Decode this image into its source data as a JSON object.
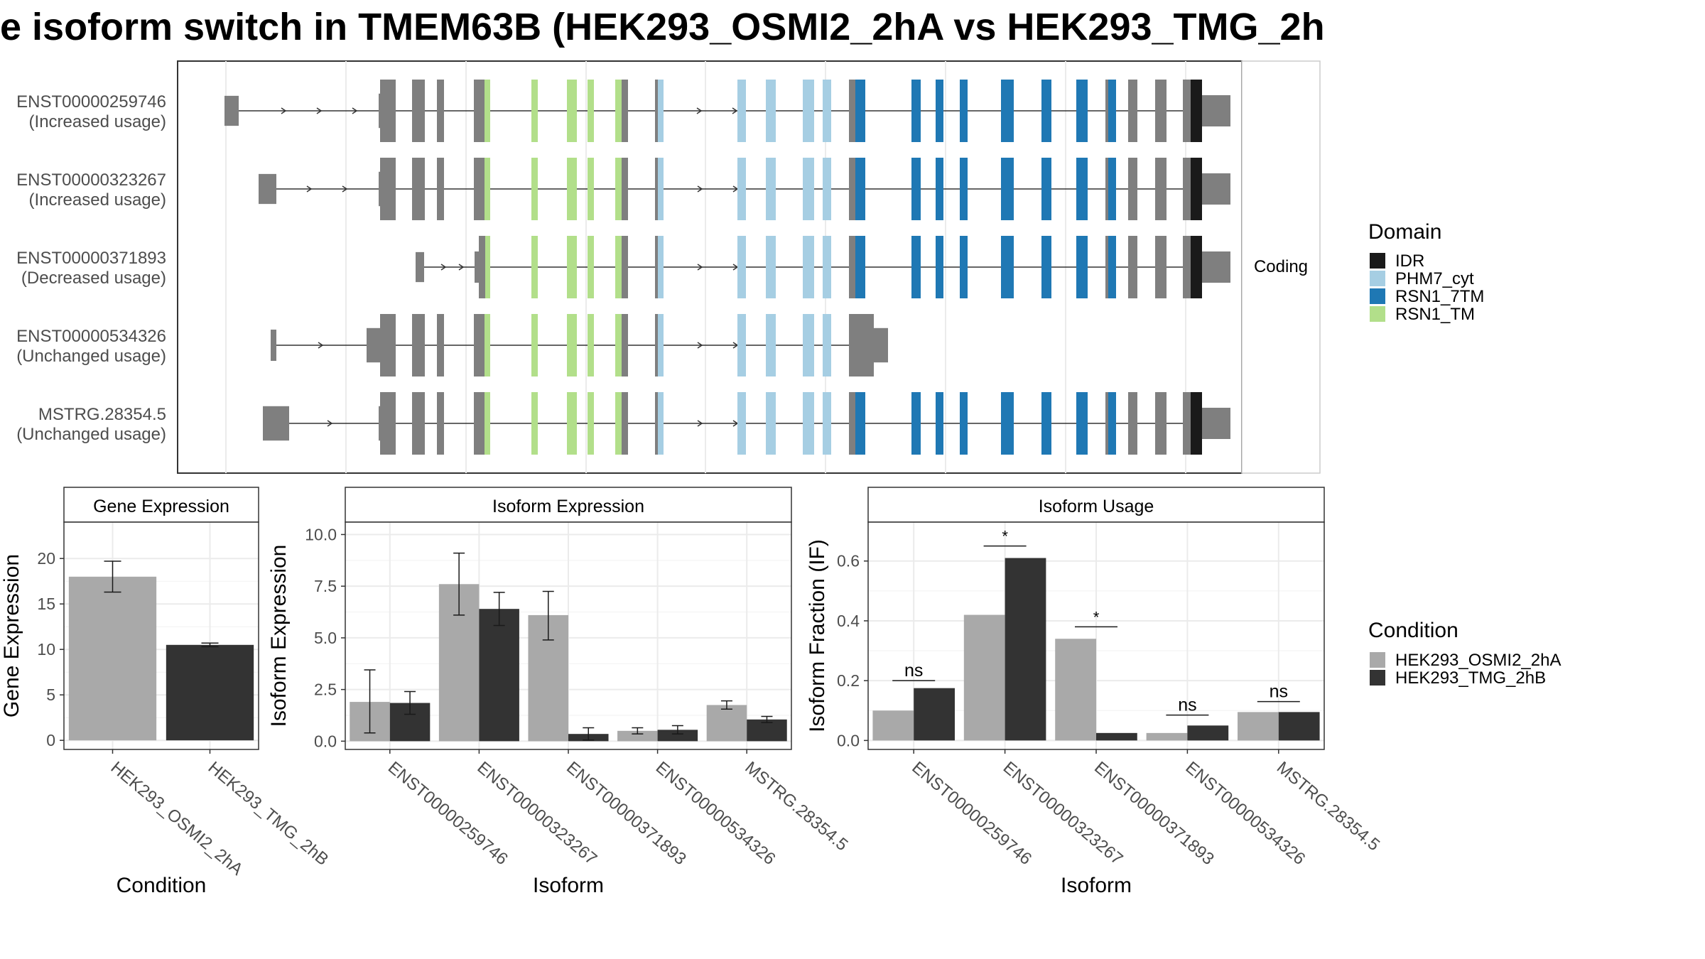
{
  "title": "e isoform switch in TMEM63B (HEK293_OSMI2_2hA vs HEK293_TMG_2h",
  "colors": {
    "exon": "#7f7f7f",
    "IDR": "#1a1a1a",
    "PHM7_cyt": "#a6cee3",
    "RSN1_7TM": "#1f78b4",
    "RSN1_TM": "#b2df8a",
    "cond_a": "#a9a9a9",
    "cond_b": "#333333",
    "panel_border": "#333333",
    "strip_bg": "#ffffff",
    "grid": "#ebebeb"
  },
  "legend_domain": {
    "title": "Domain",
    "items": [
      {
        "name": "IDR",
        "color": "#1a1a1a"
      },
      {
        "name": "PHM7_cyt",
        "color": "#a6cee3"
      },
      {
        "name": "RSN1_7TM",
        "color": "#1f78b4"
      },
      {
        "name": "RSN1_TM",
        "color": "#b2df8a"
      }
    ]
  },
  "legend_condition": {
    "title": "Condition",
    "items": [
      {
        "name": "HEK293_OSMI2_2hA",
        "color": "#a9a9a9"
      },
      {
        "name": "HEK293_TMG_2hB",
        "color": "#333333"
      }
    ]
  },
  "structure": {
    "facet_label": "Coding",
    "rows": [
      {
        "id": "ENST00000259746",
        "note": "(Increased usage)"
      },
      {
        "id": "ENST00000323267",
        "note": "(Increased usage)"
      },
      {
        "id": "ENST00000371893",
        "note": "(Decreased usage)"
      },
      {
        "id": "ENST00000534326",
        "note": "(Unchanged usage)"
      },
      {
        "id": "MSTRG.28354.5",
        "note": "(Unchanged usage)"
      }
    ]
  },
  "chart_data": [
    {
      "type": "bar",
      "title": "Gene Expression",
      "xlabel": "Condition",
      "ylabel": "Gene Expression",
      "categories": [
        "HEK293_OSMI2_2hA",
        "HEK293_TMG_2hB"
      ],
      "values": [
        18.0,
        10.5
      ],
      "errors": [
        [
          16.3,
          19.7
        ],
        [
          10.3,
          10.7
        ]
      ],
      "ylim": [
        -1,
        24
      ],
      "yticks": [
        0,
        5,
        10,
        15,
        20
      ]
    },
    {
      "type": "bar",
      "title": "Isoform Expression",
      "xlabel": "Isoform",
      "ylabel": "Isoform Expression",
      "categories": [
        "ENST00000259746",
        "ENST00000323267",
        "ENST00000371893",
        "ENST00000534326",
        "MSTRG.28354.5"
      ],
      "series": [
        {
          "name": "HEK293_OSMI2_2hA",
          "values": [
            1.9,
            7.6,
            6.1,
            0.5,
            1.75
          ],
          "errors": [
            [
              0.4,
              3.45
            ],
            [
              6.1,
              9.1
            ],
            [
              4.9,
              7.25
            ],
            [
              0.35,
              0.65
            ],
            [
              1.55,
              1.95
            ]
          ]
        },
        {
          "name": "HEK293_TMG_2hB",
          "values": [
            1.85,
            6.4,
            0.35,
            0.55,
            1.05
          ],
          "errors": [
            [
              1.3,
              2.4
            ],
            [
              5.6,
              7.2
            ],
            [
              0.05,
              0.65
            ],
            [
              0.35,
              0.75
            ],
            [
              0.9,
              1.2
            ]
          ]
        }
      ],
      "ylim": [
        -0.4,
        10.6
      ],
      "yticks": [
        "0.0",
        "2.5",
        "5.0",
        "7.5",
        "10.0"
      ]
    },
    {
      "type": "bar",
      "title": "Isoform Usage",
      "xlabel": "Isoform",
      "ylabel": "Isoform Fraction (IF)",
      "categories": [
        "ENST00000259746",
        "ENST00000323267",
        "ENST00000371893",
        "ENST00000534326",
        "MSTRG.28354.5"
      ],
      "series": [
        {
          "name": "HEK293_OSMI2_2hA",
          "values": [
            0.1,
            0.42,
            0.34,
            0.025,
            0.095
          ]
        },
        {
          "name": "HEK293_TMG_2hB",
          "values": [
            0.175,
            0.61,
            0.025,
            0.05,
            0.095
          ]
        }
      ],
      "significance": [
        "ns",
        "*",
        "*",
        "ns",
        "ns"
      ],
      "sig_heights": [
        0.2,
        0.65,
        0.38,
        0.085,
        0.13
      ],
      "ylim": [
        -0.03,
        0.73
      ],
      "yticks": [
        "0.0",
        "0.2",
        "0.4",
        "0.6"
      ]
    }
  ]
}
